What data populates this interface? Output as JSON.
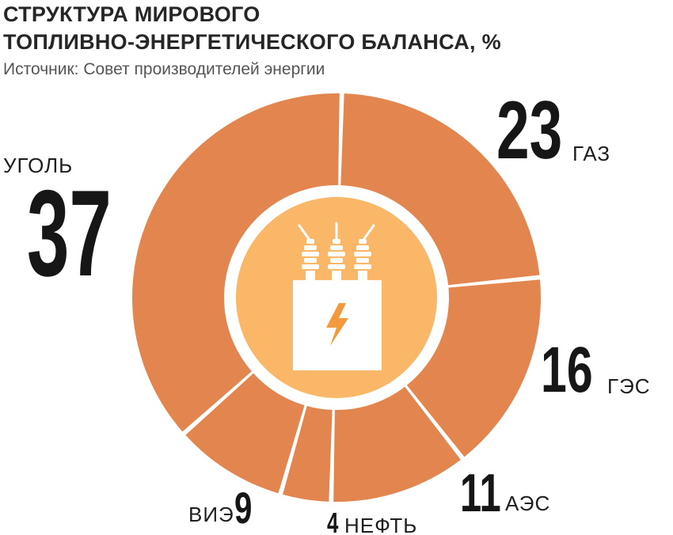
{
  "title_line1": "СТРУКТУРА МИРОВОГО",
  "title_line2": "ТОПЛИВНО-ЭНЕРГЕТИЧЕСКОГО БАЛАНСА, %",
  "source": "Источник: Совет производителей энергии",
  "colors": {
    "slice": "#E3854E",
    "inner_circle": "#F9B767",
    "icon_body": "#FFFFFF",
    "bolt": "#F39A3C",
    "text": "#161616"
  },
  "icon": "transformer-icon",
  "chart_data": {
    "type": "pie",
    "variant": "donut",
    "unit": "%",
    "title": "СТРУКТУРА МИРОВОГО ТОПЛИВНО-ЭНЕРГЕТИЧЕСКОГО БАЛАНСА, %",
    "categories": [
      "ГАЗ",
      "ГЭС",
      "АЭС",
      "НЕФТЬ",
      "ВИЭ",
      "УГОЛЬ"
    ],
    "values": [
      23,
      16,
      11,
      4,
      9,
      37
    ],
    "value_labels": [
      "23",
      "16",
      "11",
      "4",
      "9",
      "37"
    ],
    "legend": "none"
  }
}
